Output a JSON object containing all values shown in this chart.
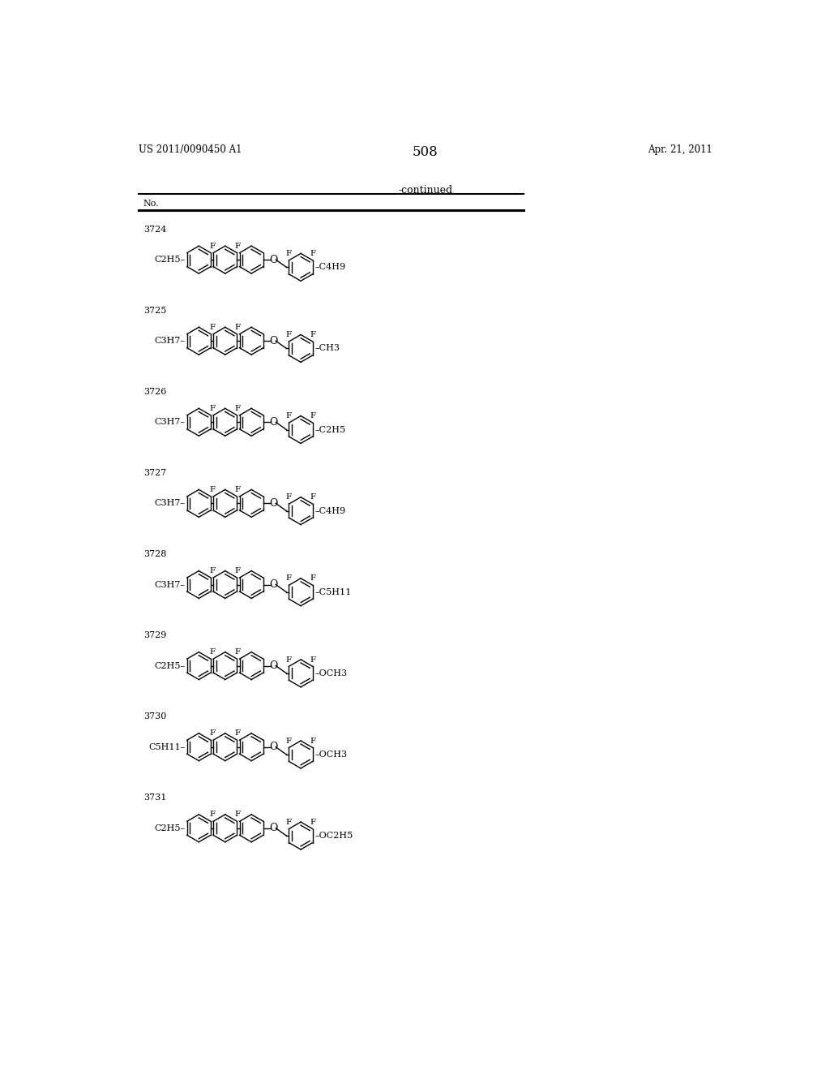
{
  "page_number": "508",
  "patent_number": "US 2011/0090450 A1",
  "patent_date": "Apr. 21, 2011",
  "table_header": "-continued",
  "col_header": "No.",
  "compounds": [
    {
      "no": "3724",
      "left_group": "C2H5",
      "left_sub": "2",
      "right_group": "C4H9",
      "right_sub": "4"
    },
    {
      "no": "3725",
      "left_group": "C3H7",
      "left_sub": "3",
      "right_group": "CH3",
      "right_sub": ""
    },
    {
      "no": "3726",
      "left_group": "C3H7",
      "left_sub": "3",
      "right_group": "C2H5",
      "right_sub": "2"
    },
    {
      "no": "3727",
      "left_group": "C3H7",
      "left_sub": "3",
      "right_group": "C4H9",
      "right_sub": "4"
    },
    {
      "no": "3728",
      "left_group": "C3H7",
      "left_sub": "3",
      "right_group": "C5H11",
      "right_sub": "5"
    },
    {
      "no": "3729",
      "left_group": "C2H5",
      "left_sub": "2",
      "right_group": "OCH3",
      "right_sub": ""
    },
    {
      "no": "3730",
      "left_group": "C5H11",
      "left_sub": "5",
      "right_group": "OCH3",
      "right_sub": ""
    },
    {
      "no": "3731",
      "left_group": "C2H5",
      "left_sub": "2",
      "right_group": "OC2H5",
      "right_sub": "2"
    }
  ],
  "bg_color": "#ffffff",
  "line_color": "#000000"
}
